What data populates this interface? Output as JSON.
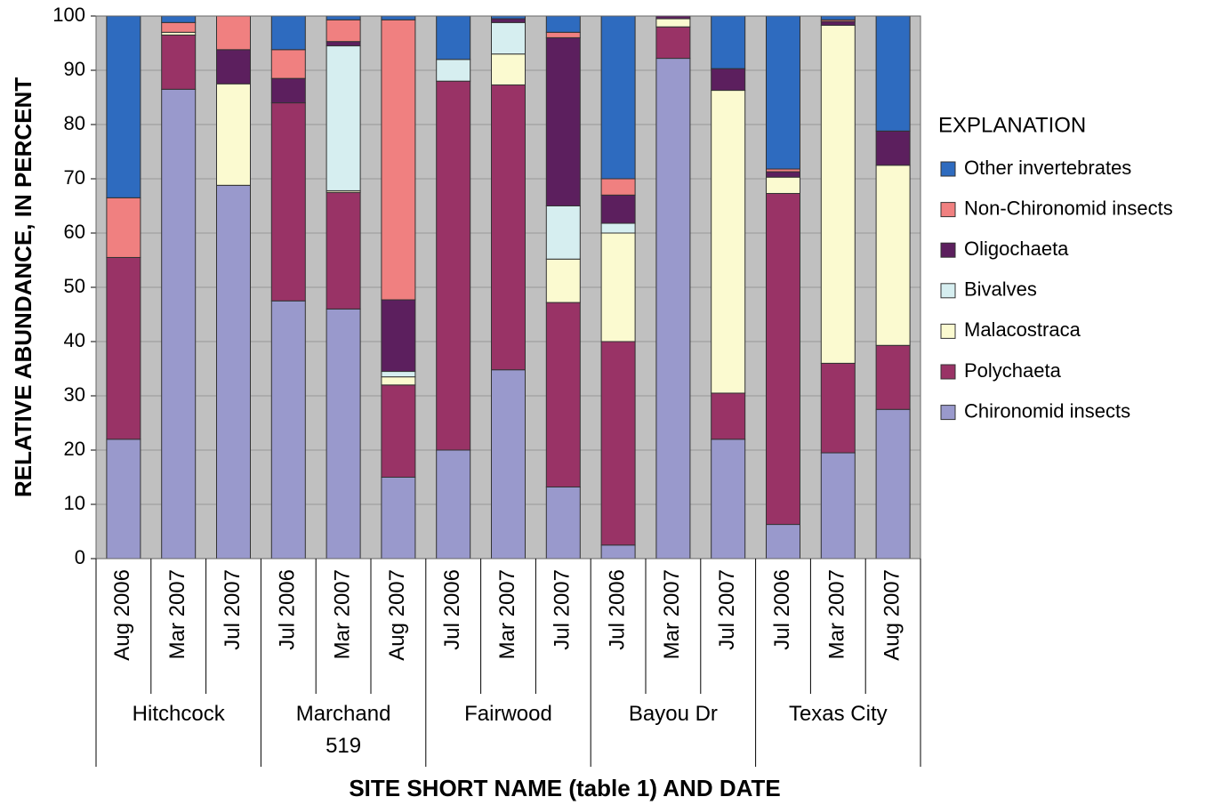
{
  "chart_data": {
    "type": "stacked_bar",
    "x_label": "SITE SHORT NAME (table 1) AND DATE",
    "y_label": "RELATIVE ABUNDANCE, IN PERCENT",
    "legend_title": "EXPLANATION",
    "legend": "right",
    "categories": [
      "Aug 2006",
      "Mar 2007",
      "Jul 2007",
      "Jul 2006",
      "Mar 2007",
      "Aug 2007",
      "Jul 2006",
      "Mar 2007",
      "Jul 2007",
      "Jul 2006",
      "Mar 2007",
      "Jul 2007",
      "Jul 2006",
      "Mar 2007",
      "Aug 2007"
    ],
    "groups": [
      "Hitchcock",
      "Marchand 519",
      "Fairwood",
      "Bayou Dr",
      "Texas City"
    ],
    "series": [
      {
        "name": "Other invertebrates",
        "color": "#2e6bbf",
        "values": [
          33.5,
          1.2,
          0,
          6.2,
          0.7,
          0.7,
          8,
          0.5,
          3,
          30,
          0,
          9.7,
          28.2,
          0.7,
          21.2
        ]
      },
      {
        "name": "Non-Chironomid insects",
        "color": "#f08080",
        "values": [
          11,
          1.8,
          6.2,
          5.3,
          4,
          51.6,
          0,
          0,
          1,
          3,
          0,
          0,
          0.5,
          0.3,
          0
        ]
      },
      {
        "name": "Oligochaeta",
        "color": "#5c1f5e",
        "values": [
          0,
          0,
          6.3,
          4.5,
          0.8,
          13.2,
          0,
          0.7,
          31,
          5.2,
          0.5,
          4,
          1,
          0.7,
          6.3
        ]
      },
      {
        "name": "Bivalves",
        "color": "#d6eef0",
        "values": [
          0,
          0,
          0,
          0,
          26.7,
          1,
          4,
          5.8,
          9.8,
          1.8,
          0,
          0,
          0,
          0,
          0
        ]
      },
      {
        "name": "Malacostraca",
        "color": "#fbfad0",
        "values": [
          0,
          0.5,
          18.7,
          0,
          0.3,
          1.5,
          0,
          5.7,
          8,
          20,
          1.5,
          55.8,
          3,
          62.3,
          33.2
        ]
      },
      {
        "name": "Polychaeta",
        "color": "#993366",
        "values": [
          33.5,
          10,
          0,
          36.5,
          21.5,
          17,
          68,
          52.5,
          34,
          37.5,
          5.8,
          8.5,
          61,
          16.5,
          11.8
        ]
      },
      {
        "name": "Chironomid insects",
        "color": "#9999cc",
        "values": [
          22,
          86.5,
          68.8,
          47.5,
          46,
          15,
          20,
          34.8,
          13.2,
          2.5,
          92.2,
          22,
          6.3,
          19.5,
          27.5
        ]
      }
    ],
    "ylim": [
      0,
      100
    ],
    "yticks": [
      0,
      10,
      20,
      30,
      40,
      50,
      60,
      70,
      80,
      90,
      100
    ],
    "grid": true,
    "plot_background": "#c0c0c0"
  }
}
